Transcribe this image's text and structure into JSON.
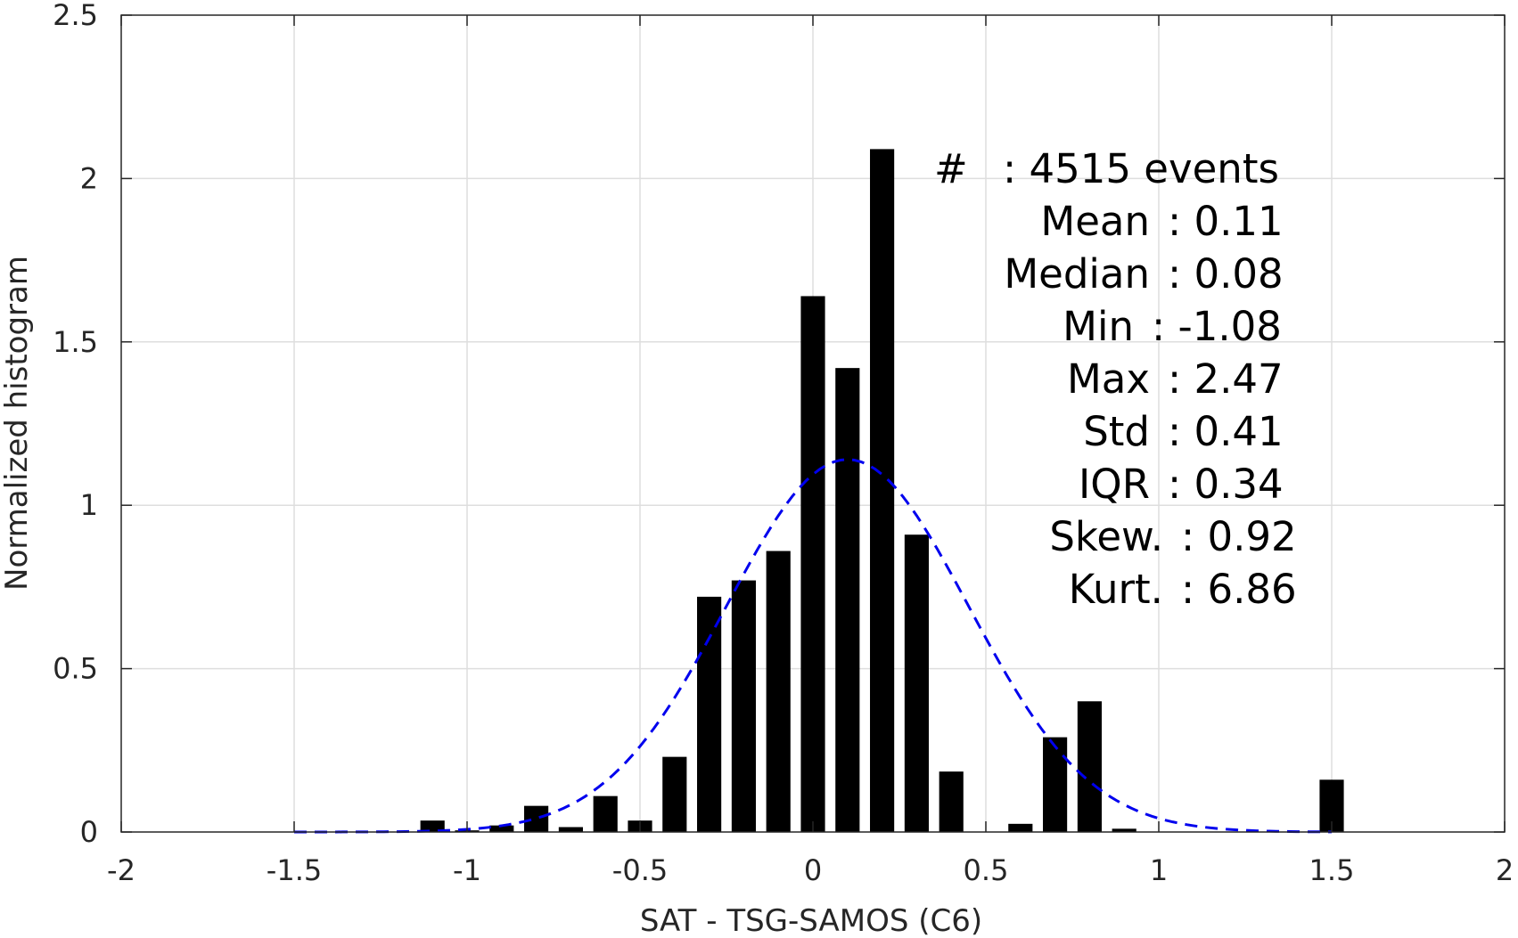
{
  "chart_data": {
    "type": "bar",
    "xlabel": "SAT - TSG-SAMOS (C6)",
    "ylabel": "Normalized histogram",
    "xlim": [
      -2,
      2
    ],
    "ylim": [
      0,
      2.5
    ],
    "grid": true,
    "xticks": [
      -2,
      -1.5,
      -1,
      -0.5,
      0,
      0.5,
      1,
      1.5,
      2
    ],
    "xtick_labels": [
      "-2",
      "-1.5",
      "-1",
      "-0.5",
      "0",
      "0.5",
      "1",
      "1.5",
      "2"
    ],
    "yticks": [
      0,
      0.5,
      1,
      1.5,
      2,
      2.5
    ],
    "ytick_labels": [
      "0",
      "0.5",
      "1",
      "1.5",
      "2",
      "2.5"
    ],
    "bar_width": 0.07,
    "bars": {
      "x": [
        -1.1,
        -1.0,
        -0.9,
        -0.8,
        -0.7,
        -0.6,
        -0.5,
        -0.4,
        -0.3,
        -0.2,
        -0.1,
        0.0,
        0.1,
        0.2,
        0.3,
        0.4,
        0.5,
        0.6,
        0.7,
        0.8,
        0.9,
        1.5
      ],
      "values": [
        0.035,
        0.005,
        0.02,
        0.08,
        0.015,
        0.11,
        0.035,
        0.23,
        0.72,
        0.77,
        0.86,
        1.64,
        1.42,
        2.09,
        0.91,
        0.185,
        0.0,
        0.025,
        0.29,
        0.4,
        0.01,
        0.16
      ],
      "color": "#000000"
    },
    "fit_curve": {
      "style": "dashed",
      "color": "#0000ee",
      "mean": 0.1,
      "peak": 1.14,
      "std": 0.35,
      "x_range": [
        -1.5,
        1.5
      ]
    },
    "annotations": [
      {
        "label": "#",
        "sep": ":",
        "value": "4515 events"
      },
      {
        "label": "Mean",
        "sep": ":",
        "value": "0.11"
      },
      {
        "label": "Median",
        "sep": ":",
        "value": "0.08"
      },
      {
        "label": "Min",
        "sep": ":",
        "value": "-1.08"
      },
      {
        "label": "Max",
        "sep": ":",
        "value": "2.47"
      },
      {
        "label": "Std",
        "sep": ":",
        "value": "0.41"
      },
      {
        "label": "IQR",
        "sep": ":",
        "value": "0.34"
      },
      {
        "label": "Skew.",
        "sep": ":",
        "value": "0.92"
      },
      {
        "label": "Kurt.",
        "sep": ":",
        "value": "6.86"
      }
    ]
  }
}
